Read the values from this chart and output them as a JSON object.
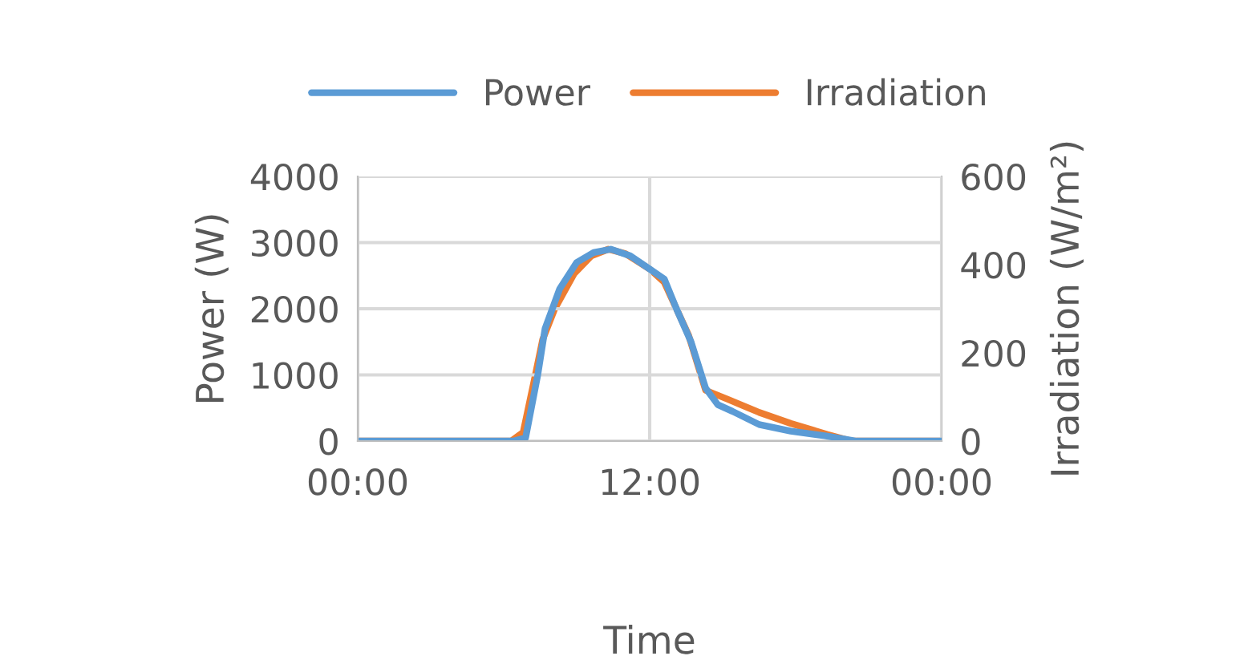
{
  "chart_data": {
    "type": "line",
    "xlabel": "Time",
    "ylabel": "Power (W)",
    "y2label": "Irradiation (W/m²)",
    "xlim": [
      0,
      24
    ],
    "xticks": [
      {
        "value": 0,
        "label": "00:00"
      },
      {
        "value": 12,
        "label": "12:00"
      },
      {
        "value": 24,
        "label": "00:00"
      }
    ],
    "ylim": [
      0,
      4000
    ],
    "yticks": [
      0,
      1000,
      2000,
      3000,
      4000
    ],
    "y2lim": [
      0,
      600
    ],
    "y2ticks": [
      0,
      200,
      400,
      600
    ],
    "grid": true,
    "legend": "top",
    "line_style": "solid",
    "marker": "none",
    "series": [
      {
        "name": "Power",
        "color": "#5b9bd5",
        "x": [
          0,
          6.4,
          6.9,
          7.4,
          7.7,
          8.3,
          9.0,
          9.7,
          10.4,
          11.2,
          12.0,
          12.6,
          13.1,
          13.7,
          14.3,
          14.8,
          15.4,
          16.5,
          17.8,
          19.2,
          20.5,
          24
        ],
        "values": [
          0,
          0,
          50,
          1000,
          1700,
          2300,
          2700,
          2850,
          2900,
          2800,
          2600,
          2450,
          2000,
          1500,
          800,
          550,
          450,
          250,
          150,
          80,
          0,
          0
        ]
      },
      {
        "name": "Irradiation",
        "color": "#ed7d31",
        "axis": "y2",
        "x": [
          0,
          6.3,
          6.8,
          7.3,
          7.6,
          8.1,
          8.9,
          9.6,
          10.3,
          11.0,
          12.0,
          12.6,
          13.1,
          13.6,
          14.3,
          15.2,
          16.5,
          17.8,
          19.3,
          20.3,
          24
        ],
        "values": [
          0,
          0,
          20,
          150,
          230,
          300,
          380,
          420,
          435,
          425,
          390,
          360,
          300,
          240,
          115,
          95,
          65,
          40,
          15,
          0,
          0
        ]
      }
    ]
  }
}
